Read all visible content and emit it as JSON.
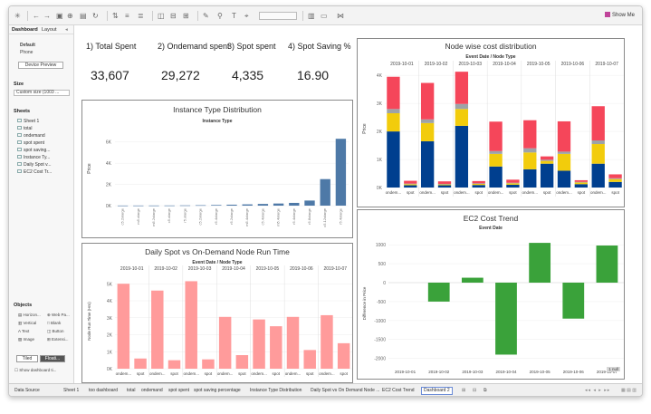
{
  "showme": "Show Me",
  "leftpanel": {
    "tab_dashboard": "Dashboard",
    "tab_layout": "Layout",
    "default_label": "Default",
    "phone_label": "Phone",
    "device_preview": "Device Preview",
    "size_heading": "Size",
    "size_value": "Custom size (1003 ...",
    "sheets_heading": "Sheets",
    "sheets": [
      "Sheet 1",
      "total",
      "ondemand",
      "spot spent",
      "spot saving...",
      "Instance Ty...",
      "Daily Spot v...",
      "EC2 Cost Tr..."
    ],
    "objects_heading": "Objects",
    "objects": [
      "Horizon...",
      "Web Pa...",
      "Vertical",
      "Blank",
      "Text",
      "Button",
      "Image",
      "Extensi..."
    ],
    "tiled": "Tiled",
    "floating": "Floati...",
    "show_title": "Show dashboard ti..."
  },
  "kpis": [
    {
      "title": "1) Total Spent",
      "value": "33,607"
    },
    {
      "title": "2) Ondemand spent",
      "value": "29,272"
    },
    {
      "title": "3) Spot spent",
      "value": "4,335"
    },
    {
      "title": "4) Spot Saving %",
      "value": "16.90"
    }
  ],
  "panels": {
    "instance": {
      "title": "Instance Type Distribution",
      "subtitle": "Instance Type"
    },
    "node": {
      "title": "Node wise cost distribution",
      "subtitle": "Event Date / Node Type"
    },
    "daily": {
      "title": "Daily Spot vs On-Demand Node Run Time",
      "subtitle": "Event Date / Node Type"
    },
    "ec2": {
      "title": "EC2 Cost Trend",
      "subtitle": "Event Date",
      "badge": "1 null"
    }
  },
  "statusbar": {
    "tabs": [
      "Data Source",
      "Sheet 1",
      "too dashboard",
      "total",
      "ondemand",
      "spot spent",
      "spot saving percentage",
      "Instance Type Distribution",
      "Daily Spot vs On Demand Node ...",
      "EC2 Cost Trend",
      "Dashboard 2"
    ]
  },
  "chart_data": [
    {
      "type": "bar",
      "title": "Instance Type Distribution",
      "subtitle": "Instance Type",
      "ylabel": "Price",
      "ylim": [
        0,
        7000
      ],
      "yticks": [
        "0K",
        "2K",
        "4K",
        "6K"
      ],
      "categories": [
        "c5.2xlarge",
        "m5.xlarge",
        "m5.2xlarge",
        "c5.xlarge",
        "r5.xlarge",
        "c5.2xlarge",
        "r5.4xlarge",
        "r5.2xlarge",
        "m5.4xlarge",
        "c5.4xlarge",
        "m5.4xlarge",
        "r5.4xlarge",
        "r5.8xlarge",
        "c5.12xlarge",
        "r5.4xlarge"
      ],
      "values": [
        8,
        10,
        12,
        15,
        25,
        40,
        60,
        90,
        120,
        160,
        200,
        260,
        480,
        2500,
        6300
      ],
      "color": "#4e79a7"
    },
    {
      "type": "bar",
      "stacked": true,
      "title": "Node wise cost distribution",
      "subtitle": "Event Date / Node Type",
      "ylabel": "Price",
      "ylim": [
        0,
        4200
      ],
      "yticks": [
        "0K",
        "1K",
        "2K",
        "3K",
        "4K"
      ],
      "dates": [
        "2019-10-01",
        "2019-10-02",
        "2019-10-03",
        "2019-10-04",
        "2019-10-05",
        "2019-10-06",
        "2019-10-07"
      ],
      "categories": [
        "ondem...",
        "spot",
        "ondem...",
        "spot",
        "ondem...",
        "spot",
        "ondem...",
        "spot",
        "ondem...",
        "spot",
        "ondem...",
        "spot",
        "ondem...",
        "spot"
      ],
      "series": [
        {
          "color": "#003f8f",
          "values": [
            2000,
            80,
            1650,
            80,
            2200,
            90,
            750,
            100,
            650,
            850,
            600,
            120,
            850,
            200
          ]
        },
        {
          "color": "#f2cc0c",
          "values": [
            650,
            40,
            650,
            30,
            600,
            40,
            450,
            50,
            600,
            100,
            600,
            60,
            700,
            100
          ]
        },
        {
          "color": "#9da3a8",
          "values": [
            150,
            20,
            130,
            20,
            180,
            20,
            100,
            20,
            150,
            40,
            80,
            20,
            130,
            30
          ]
        },
        {
          "color": "#f5465a",
          "values": [
            1150,
            100,
            1300,
            90,
            1150,
            80,
            1050,
            110,
            1000,
            120,
            1080,
            60,
            1220,
            140
          ]
        }
      ]
    },
    {
      "type": "bar",
      "title": "Daily Spot vs On-Demand Node Run Time",
      "subtitle": "Event Date / Node Type",
      "ylabel": "Node Run Time (Hrs)",
      "ylim": [
        0,
        5600
      ],
      "yticks": [
        "0K",
        "1K",
        "2K",
        "3K",
        "4K",
        "5K"
      ],
      "dates": [
        "2019-10-01",
        "2019-10-02",
        "2019-10-03",
        "2019-10-04",
        "2019-10-05",
        "2019-10-06",
        "2019-10-07"
      ],
      "categories": [
        "ondem...",
        "spot",
        "ondem...",
        "spot",
        "ondem...",
        "spot",
        "ondem...",
        "spot",
        "ondem...",
        "spot",
        "ondem...",
        "spot",
        "ondem...",
        "spot"
      ],
      "values": [
        5000,
        600,
        4600,
        500,
        5150,
        550,
        3050,
        800,
        2900,
        2500,
        3050,
        1100,
        3150,
        1500
      ],
      "color": "#ff9b9b"
    },
    {
      "type": "bar",
      "title": "EC2 Cost Trend",
      "subtitle": "Event Date",
      "ylabel": "Difference in Price",
      "ylim": [
        -2200,
        1100
      ],
      "yticks": [
        "1000",
        "500",
        "0",
        "-500",
        "-1000",
        "-1500",
        "-2000"
      ],
      "ytick_values": [
        1000,
        500,
        0,
        -500,
        -1000,
        -1500,
        -2000
      ],
      "categories": [
        "2019-10-01",
        "2019-10-02",
        "2019-10-03",
        "2019-10-04",
        "2019-10-05",
        "2019-10-06",
        "2019-10-07"
      ],
      "values": [
        null,
        -500,
        130,
        -1900,
        1050,
        -950,
        980
      ],
      "color": "#3aa23a"
    }
  ]
}
